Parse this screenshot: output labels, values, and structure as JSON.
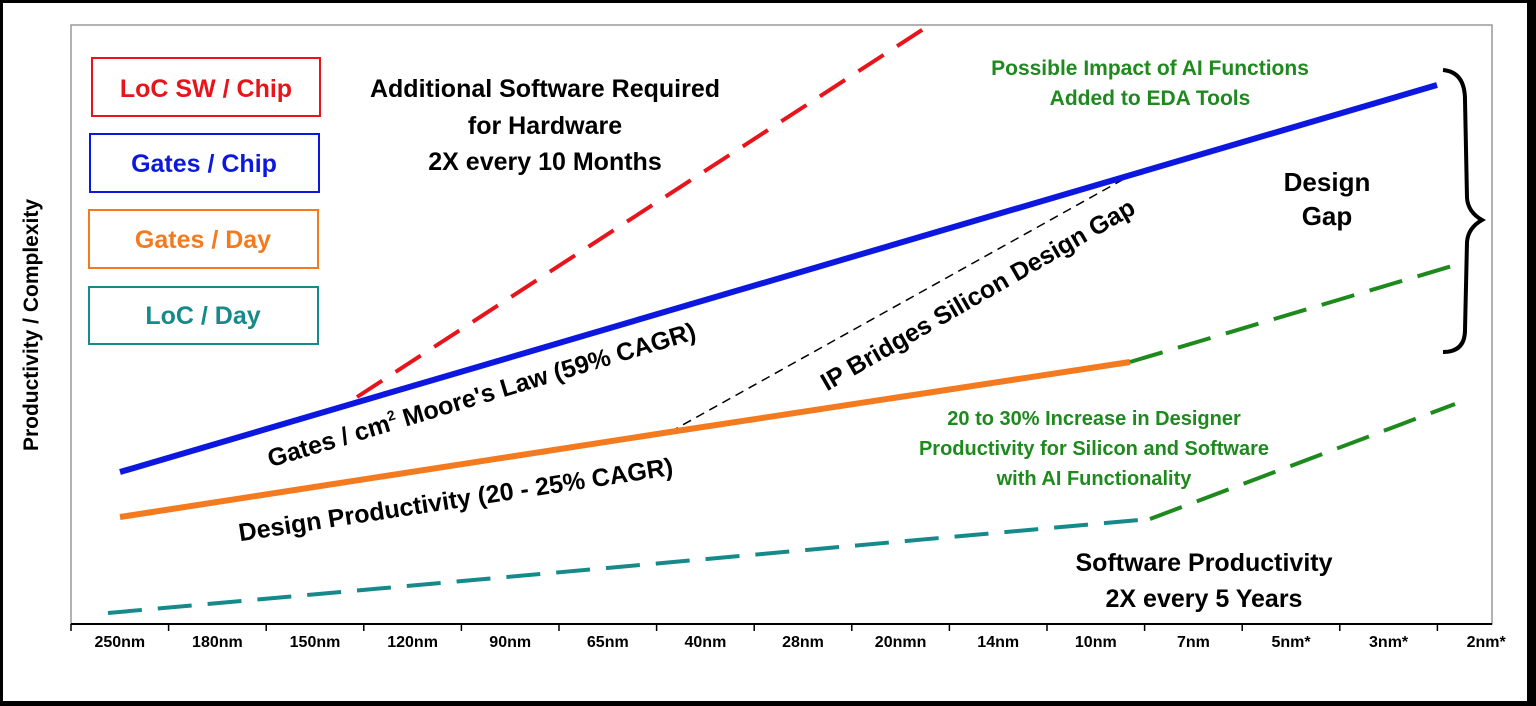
{
  "y_axis_label": "Productivity / Complexity",
  "x_axis_ticks": [
    "250nm",
    "180nm",
    "150nm",
    "120nm",
    "90nm",
    "65nm",
    "40nm",
    "28nm",
    "20nmn",
    "14nm",
    "10nm",
    "7nm",
    "5nm*",
    "3nm*",
    "2nm*"
  ],
  "legend": [
    {
      "label": "LoC SW / Chip",
      "color": "#e8141b"
    },
    {
      "label": "Gates / Chip",
      "color": "#0c18e0"
    },
    {
      "label": "Gates / Day",
      "color": "#f47a20"
    },
    {
      "label": "LoC / Day",
      "color": "#168a8a"
    }
  ],
  "annotations": {
    "software_required": [
      "Additional Software Required",
      "for Hardware",
      "2X every 10 Months"
    ],
    "ai_eda": [
      "Possible Impact of AI Functions",
      "Added to EDA Tools"
    ],
    "design_gap": [
      "Design",
      "Gap"
    ],
    "moores_law_prefix": "Gates / cm",
    "moores_law_sup": "2",
    "moores_law_suffix": " Moore's Law (59% CAGR)",
    "ip_bridges": "IP Bridges Silicon Design Gap",
    "design_productivity": "Design Productivity (20 - 25% CAGR)",
    "ai_increase": [
      "20 to 30% Increase in Designer",
      "Productivity for Silicon and Software",
      "with AI Functionality"
    ],
    "software_productivity": [
      "Software Productivity",
      "2X every 5 Years"
    ]
  },
  "colors": {
    "ai_green": "#1e8a1e",
    "frame": "#999999"
  }
}
